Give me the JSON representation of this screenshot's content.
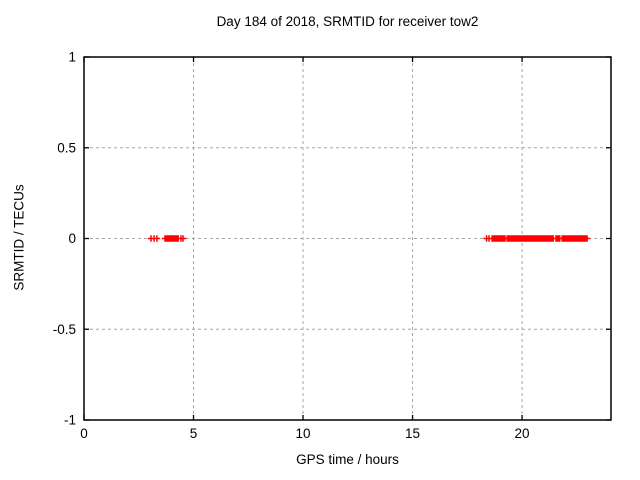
{
  "title": "Day 184 of 2018, SRMTID for receiver tow2",
  "colors": {
    "marker": "#ff0000",
    "grid": "#a6a6a6",
    "axis": "#000000",
    "background": "#ffffff"
  },
  "chart_data": {
    "type": "scatter",
    "title": "Day 184 of 2018, SRMTID for receiver tow2",
    "xlabel": "GPS time / hours",
    "ylabel": "SRMTID / TECUs",
    "xlim": [
      0,
      24.06
    ],
    "ylim": [
      -1,
      1
    ],
    "x_ticks": [
      0,
      5,
      10,
      15,
      20
    ],
    "x_tick_labels": [
      "0",
      "5",
      "10",
      "15",
      "20"
    ],
    "y_ticks": [
      -1,
      -0.5,
      0,
      0.5,
      1
    ],
    "y_tick_labels": [
      "-1",
      "-0.5",
      "0",
      "0.5",
      "1"
    ],
    "grid": true,
    "legend": "none",
    "marker": "plus",
    "series": [
      {
        "name": "SRMTID",
        "y_value": 0,
        "x_segments": [
          {
            "start": 3.06,
            "end": 3.06
          },
          {
            "start": 3.2,
            "end": 3.2
          },
          {
            "start": 3.33,
            "end": 3.33
          },
          {
            "start": 3.7,
            "end": 4.25
          },
          {
            "start": 4.3,
            "end": 4.3
          },
          {
            "start": 4.43,
            "end": 4.43
          },
          {
            "start": 4.52,
            "end": 4.52
          },
          {
            "start": 18.38,
            "end": 18.38
          },
          {
            "start": 18.49,
            "end": 18.49
          },
          {
            "start": 18.63,
            "end": 19.22
          },
          {
            "start": 19.32,
            "end": 21.42
          },
          {
            "start": 21.55,
            "end": 21.72
          },
          {
            "start": 21.83,
            "end": 22.97
          }
        ]
      }
    ]
  }
}
